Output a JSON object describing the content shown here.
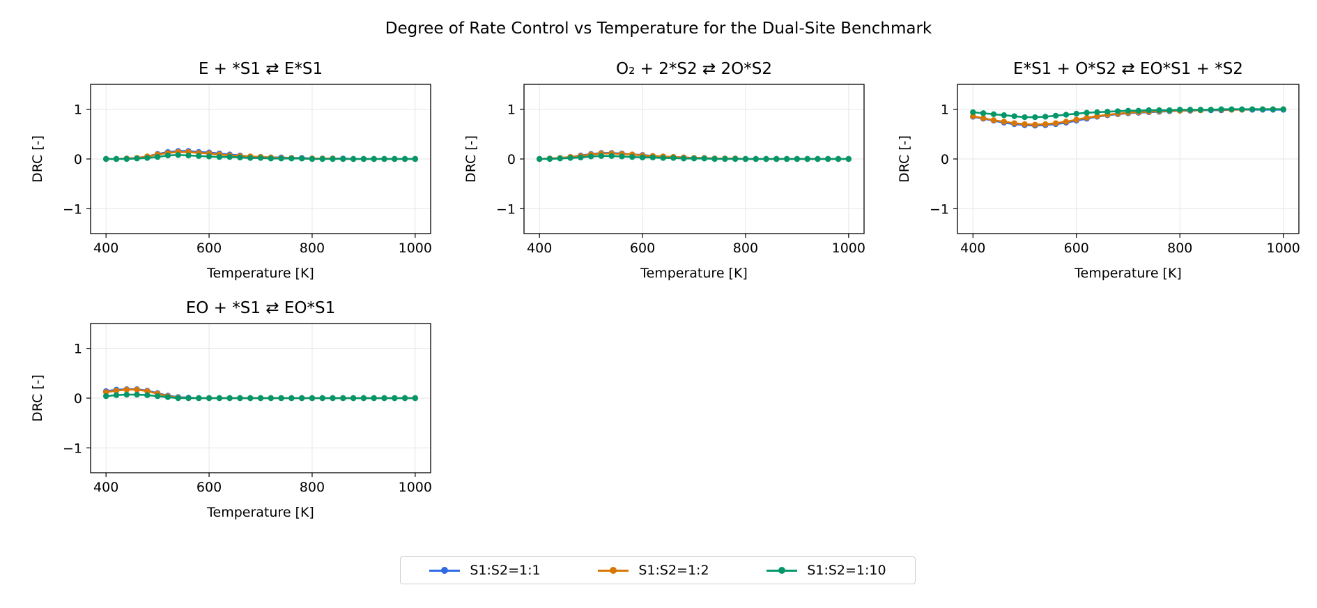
{
  "suptitle": "Degree of Rate Control vs Temperature for the Dual-Site Benchmark",
  "colors": {
    "S1:S2=1:1": "#2f6ae6",
    "S1:S2=1:2": "#d97706",
    "S1:S2=1:10": "#05976a"
  },
  "legend": {
    "position": "bottom-center",
    "entries": [
      "S1:S2=1:1",
      "S1:S2=1:2",
      "S1:S2=1:10"
    ]
  },
  "chart_data": [
    {
      "type": "line",
      "title": "E + *S1 ⇄ E*S1",
      "xlabel": "Temperature [K]",
      "ylabel": "DRC [-]",
      "xlim": [
        370,
        1030
      ],
      "ylim": [
        -1.5,
        1.5
      ],
      "xticks": [
        400,
        600,
        800,
        1000
      ],
      "yticks": [
        -1,
        0,
        1
      ],
      "grid": true,
      "x": [
        400,
        420,
        440,
        460,
        480,
        500,
        520,
        540,
        560,
        580,
        600,
        620,
        640,
        660,
        680,
        700,
        720,
        740,
        760,
        780,
        800,
        820,
        840,
        860,
        880,
        900,
        920,
        940,
        960,
        980,
        1000
      ],
      "series": [
        {
          "name": "S1:S2=1:1",
          "values": [
            0,
            0,
            0.01,
            0.02,
            0.05,
            0.1,
            0.14,
            0.16,
            0.16,
            0.14,
            0.13,
            0.11,
            0.09,
            0.07,
            0.05,
            0.04,
            0.03,
            0.03,
            0.02,
            0.02,
            0.01,
            0.01,
            0.01,
            0.01,
            0,
            0,
            0,
            0,
            0,
            0,
            0
          ]
        },
        {
          "name": "S1:S2=1:2",
          "values": [
            0,
            0,
            0.01,
            0.02,
            0.05,
            0.09,
            0.12,
            0.14,
            0.14,
            0.12,
            0.11,
            0.09,
            0.07,
            0.06,
            0.05,
            0.04,
            0.03,
            0.02,
            0.02,
            0.01,
            0.01,
            0.01,
            0.01,
            0,
            0,
            0,
            0,
            0,
            0,
            0,
            0
          ]
        },
        {
          "name": "S1:S2=1:10",
          "values": [
            0,
            0,
            0,
            0.01,
            0.02,
            0.04,
            0.07,
            0.08,
            0.07,
            0.06,
            0.05,
            0.04,
            0.04,
            0.03,
            0.02,
            0.02,
            0.01,
            0.01,
            0.01,
            0.01,
            0,
            0,
            0,
            0,
            0,
            0,
            0,
            0,
            0,
            0,
            0
          ]
        }
      ]
    },
    {
      "type": "line",
      "title": "O₂ + 2*S2 ⇄ 2O*S2",
      "xlabel": "Temperature [K]",
      "ylabel": "DRC [-]",
      "xlim": [
        370,
        1030
      ],
      "ylim": [
        -1.5,
        1.5
      ],
      "xticks": [
        400,
        600,
        800,
        1000
      ],
      "yticks": [
        -1,
        0,
        1
      ],
      "grid": true,
      "x": [
        400,
        420,
        440,
        460,
        480,
        500,
        520,
        540,
        560,
        580,
        600,
        620,
        640,
        660,
        680,
        700,
        720,
        740,
        760,
        780,
        800,
        820,
        840,
        860,
        880,
        900,
        920,
        940,
        960,
        980,
        1000
      ],
      "series": [
        {
          "name": "S1:S2=1:1",
          "values": [
            0,
            0.01,
            0.02,
            0.04,
            0.07,
            0.1,
            0.12,
            0.12,
            0.11,
            0.09,
            0.08,
            0.06,
            0.05,
            0.04,
            0.03,
            0.02,
            0.02,
            0.01,
            0.01,
            0.01,
            0,
            0,
            0,
            0,
            0,
            0,
            0,
            0,
            0,
            0,
            0
          ]
        },
        {
          "name": "S1:S2=1:2",
          "values": [
            0,
            0.01,
            0.02,
            0.04,
            0.06,
            0.09,
            0.11,
            0.11,
            0.1,
            0.09,
            0.07,
            0.06,
            0.05,
            0.04,
            0.03,
            0.02,
            0.02,
            0.01,
            0.01,
            0.01,
            0,
            0,
            0,
            0,
            0,
            0,
            0,
            0,
            0,
            0,
            0
          ]
        },
        {
          "name": "S1:S2=1:10",
          "values": [
            0,
            0,
            0.01,
            0.02,
            0.03,
            0.05,
            0.06,
            0.06,
            0.05,
            0.04,
            0.03,
            0.03,
            0.02,
            0.02,
            0.01,
            0.01,
            0.01,
            0,
            0,
            0,
            0,
            0,
            0,
            0,
            0,
            0,
            0,
            0,
            0,
            0,
            0
          ]
        }
      ]
    },
    {
      "type": "line",
      "title": "E*S1 + O*S2 ⇄ EO*S1 + *S2",
      "xlabel": "Temperature [K]",
      "ylabel": "DRC [-]",
      "xlim": [
        370,
        1030
      ],
      "ylim": [
        -1.5,
        1.5
      ],
      "xticks": [
        400,
        600,
        800,
        1000
      ],
      "yticks": [
        -1,
        0,
        1
      ],
      "grid": true,
      "x": [
        400,
        420,
        440,
        460,
        480,
        500,
        520,
        540,
        560,
        580,
        600,
        620,
        640,
        660,
        680,
        700,
        720,
        740,
        760,
        780,
        800,
        820,
        840,
        860,
        880,
        900,
        920,
        940,
        960,
        980,
        1000
      ],
      "series": [
        {
          "name": "S1:S2=1:1",
          "values": [
            0.85,
            0.81,
            0.77,
            0.73,
            0.7,
            0.68,
            0.67,
            0.68,
            0.7,
            0.73,
            0.77,
            0.81,
            0.85,
            0.88,
            0.9,
            0.92,
            0.93,
            0.94,
            0.95,
            0.96,
            0.97,
            0.97,
            0.98,
            0.98,
            0.98,
            0.99,
            0.99,
            0.99,
            0.99,
            0.99,
            0.99
          ]
        },
        {
          "name": "S1:S2=1:2",
          "values": [
            0.86,
            0.82,
            0.78,
            0.75,
            0.72,
            0.7,
            0.69,
            0.7,
            0.72,
            0.75,
            0.79,
            0.83,
            0.86,
            0.89,
            0.91,
            0.93,
            0.94,
            0.95,
            0.96,
            0.97,
            0.97,
            0.98,
            0.98,
            0.99,
            0.99,
            0.99,
            0.99,
            1.0,
            1.0,
            1.0,
            1.0
          ]
        },
        {
          "name": "S1:S2=1:10",
          "values": [
            0.94,
            0.92,
            0.9,
            0.88,
            0.86,
            0.84,
            0.84,
            0.85,
            0.87,
            0.89,
            0.91,
            0.93,
            0.94,
            0.95,
            0.96,
            0.97,
            0.97,
            0.98,
            0.98,
            0.98,
            0.99,
            0.99,
            0.99,
            0.99,
            1.0,
            1.0,
            1.0,
            1.0,
            1.0,
            1.0,
            1.0
          ]
        }
      ]
    },
    {
      "type": "line",
      "title": "EO + *S1 ⇄ EO*S1",
      "xlabel": "Temperature [K]",
      "ylabel": "DRC [-]",
      "xlim": [
        370,
        1030
      ],
      "ylim": [
        -1.5,
        1.5
      ],
      "xticks": [
        400,
        600,
        800,
        1000
      ],
      "yticks": [
        -1,
        0,
        1
      ],
      "grid": true,
      "x": [
        400,
        420,
        440,
        460,
        480,
        500,
        520,
        540,
        560,
        580,
        600,
        620,
        640,
        660,
        680,
        700,
        720,
        740,
        760,
        780,
        800,
        820,
        840,
        860,
        880,
        900,
        920,
        940,
        960,
        980,
        1000
      ],
      "series": [
        {
          "name": "S1:S2=1:1",
          "values": [
            0.14,
            0.17,
            0.18,
            0.18,
            0.15,
            0.1,
            0.05,
            0.02,
            0.01,
            0,
            0,
            0,
            0,
            0,
            0,
            0,
            0,
            0,
            0,
            0,
            0,
            0,
            0,
            0,
            0,
            0,
            0,
            0,
            0,
            0,
            0
          ]
        },
        {
          "name": "S1:S2=1:2",
          "values": [
            0.12,
            0.15,
            0.17,
            0.17,
            0.14,
            0.09,
            0.04,
            0.01,
            0,
            0,
            0,
            0,
            0,
            0,
            0,
            0,
            0,
            0,
            0,
            0,
            0,
            0,
            0,
            0,
            0,
            0,
            0,
            0,
            0,
            0,
            0
          ]
        },
        {
          "name": "S1:S2=1:10",
          "values": [
            0.04,
            0.06,
            0.07,
            0.07,
            0.06,
            0.04,
            0.02,
            0,
            0,
            0,
            0,
            0,
            0,
            0,
            0,
            0,
            0,
            0,
            0,
            0,
            0,
            0,
            0,
            0,
            0,
            0,
            0,
            0,
            0,
            0,
            0
          ]
        }
      ]
    }
  ]
}
